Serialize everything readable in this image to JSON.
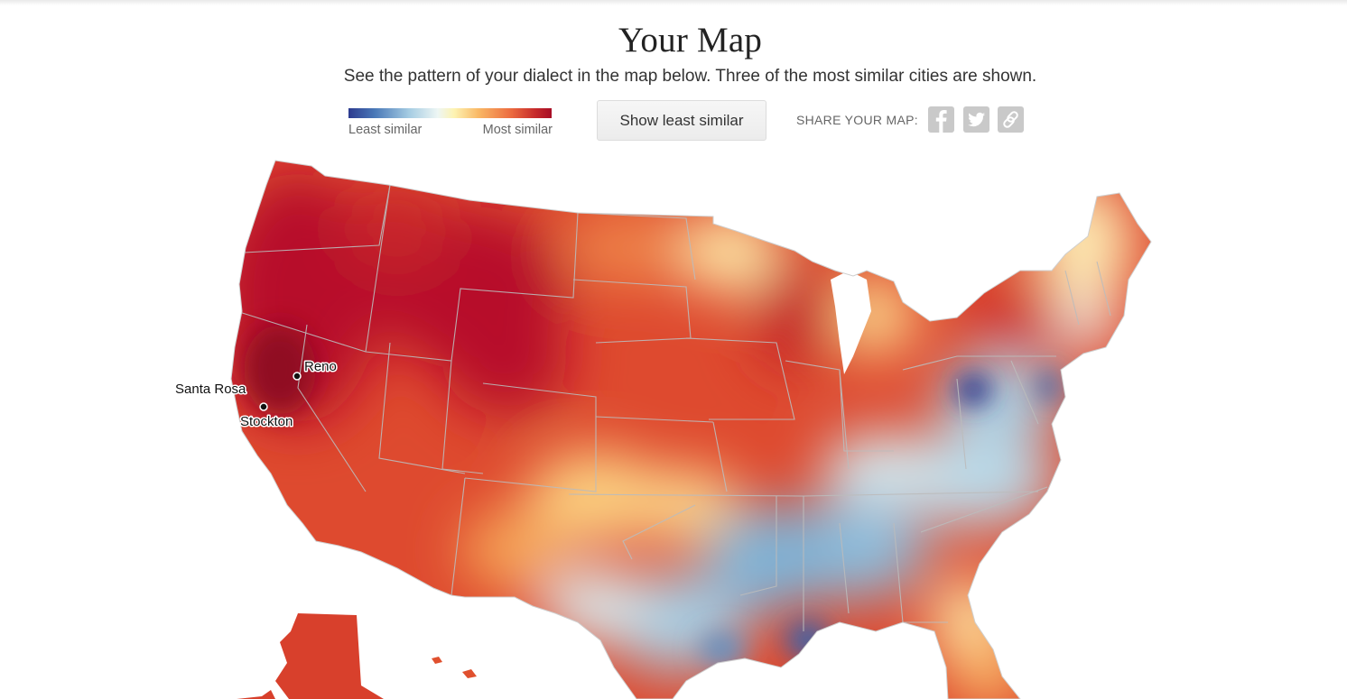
{
  "header": {
    "title": "Your Map",
    "subtitle": "See the pattern of your dialect in the map below. Three of the most similar cities are shown."
  },
  "legend": {
    "low_label": "Least similar",
    "high_label": "Most similar",
    "colors": [
      "#2c3b8f",
      "#4a79b8",
      "#a6cde3",
      "#eef6f4",
      "#fdf3b2",
      "#f9b865",
      "#ec6b3f",
      "#c62a2b",
      "#a70d26"
    ]
  },
  "toggle_button": {
    "label": "Show least similar"
  },
  "share": {
    "label": "SHARE YOUR MAP:",
    "buttons": [
      {
        "icon": "facebook-icon"
      },
      {
        "icon": "twitter-icon"
      },
      {
        "icon": "link-icon"
      }
    ]
  },
  "map": {
    "region": "United States",
    "most_similar_cities": [
      {
        "name": "Santa Rosa"
      },
      {
        "name": "Reno"
      },
      {
        "name": "Stockton"
      }
    ]
  }
}
